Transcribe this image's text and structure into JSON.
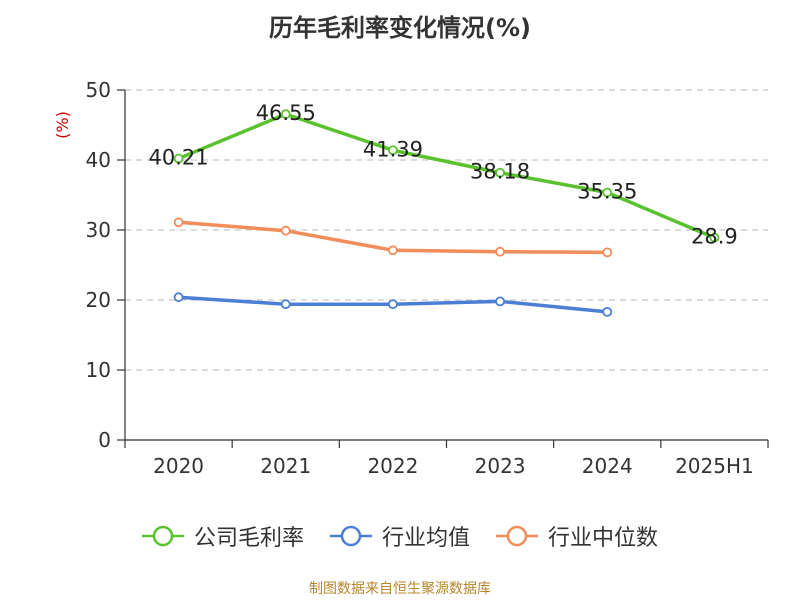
{
  "title": "历年毛利率变化情况(%)",
  "source": "制图数据来自恒生聚源数据库",
  "colors": {
    "gross_margin": "#5ac22e",
    "industry_mean": "#4b7fd6",
    "industry_median": "#f28c5a",
    "axis": "#333333",
    "grid": "#c8c8c8",
    "ylabel": "#cc0000"
  },
  "chart_data": {
    "type": "line",
    "x": [
      "2020",
      "2021",
      "2022",
      "2023",
      "2024",
      "2025H1"
    ],
    "ylabel": "(%)",
    "ylim": [
      0,
      50
    ],
    "yticks": [
      0,
      10,
      20,
      30,
      40,
      50
    ],
    "grid": true,
    "legend_position": "bottom",
    "series": [
      {
        "name": "公司毛利率",
        "color": "#5ac22e",
        "labels": true,
        "values": [
          40.21,
          46.55,
          41.39,
          38.18,
          35.35,
          28.9
        ]
      },
      {
        "name": "行业均值",
        "color": "#4b7fd6",
        "labels": false,
        "values": [
          20.4,
          19.4,
          19.4,
          19.8,
          18.3,
          null
        ]
      },
      {
        "name": "行业中位数",
        "color": "#f28c5a",
        "labels": false,
        "values": [
          31.1,
          29.9,
          27.1,
          26.9,
          26.8,
          null
        ]
      }
    ]
  }
}
